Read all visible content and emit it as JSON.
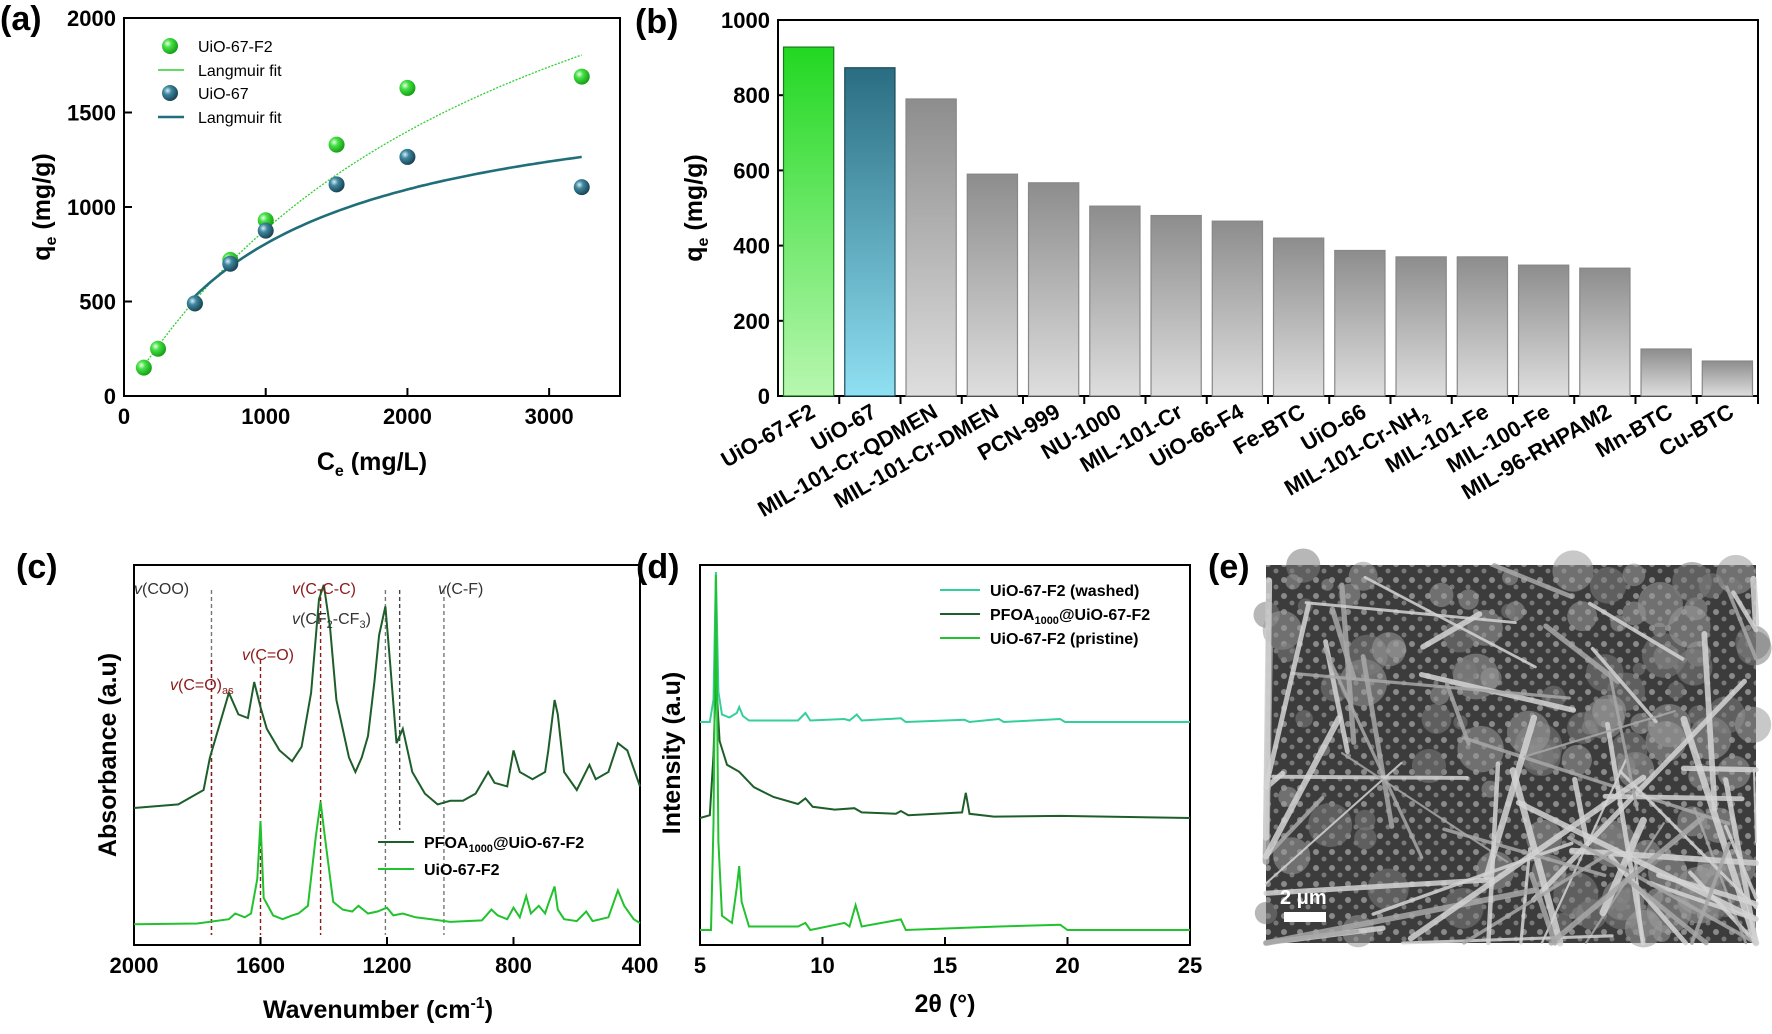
{
  "panels": {
    "a": "(a)",
    "b": "(b)",
    "c": "(c)",
    "d": "(d)",
    "e": "(e)"
  },
  "colors": {
    "uio67f2": "#2fd12f",
    "uio67f2_dark": "#1a8a1a",
    "uio67": "#2a6b80",
    "uio67_line": "#1f6e7a",
    "gray": "#9a9a9a",
    "pfoa_line": "#1d5e2a",
    "pristine_line": "#22c22f",
    "washed_line": "#35cf9a",
    "ann_red": "#8b1a1a"
  },
  "chart_data": [
    {
      "id": "a",
      "type": "scatter",
      "xlabel_main": "C",
      "xlabel_sub": "e",
      "xlabel_unit": " (mg/L)",
      "ylabel_main": "q",
      "ylabel_sub": "e",
      "ylabel_unit": " (mg/g)",
      "xlim": [
        0,
        3500
      ],
      "ylim": [
        0,
        2000
      ],
      "xticks": [
        0,
        1000,
        2000,
        3000
      ],
      "yticks": [
        0,
        500,
        1000,
        1500,
        2000
      ],
      "legend_position": "top-left",
      "series": [
        {
          "name": "UiO-67-F2",
          "kind": "points",
          "x": [
            140,
            240,
            500,
            750,
            1000,
            1500,
            2000,
            3230
          ],
          "y": [
            150,
            250,
            490,
            720,
            930,
            1330,
            1630,
            1690
          ]
        },
        {
          "name": "Langmuir fit",
          "kind": "fit",
          "qmax": 3400,
          "K": 0.00035,
          "xrange": [
            140,
            3230
          ]
        },
        {
          "name": "UiO-67",
          "kind": "points",
          "x": [
            500,
            750,
            1000,
            1500,
            2000,
            3230
          ],
          "y": [
            490,
            700,
            875,
            1120,
            1265,
            1105
          ]
        },
        {
          "name": "Langmuir fit",
          "kind": "fit",
          "qmax": 1700,
          "K": 0.0009,
          "xrange": [
            500,
            3230
          ]
        }
      ]
    },
    {
      "id": "b",
      "type": "bar",
      "ylabel_main": "q",
      "ylabel_sub": "e",
      "ylabel_unit": " (mg/g)",
      "ylim": [
        0,
        1000
      ],
      "yticks": [
        0,
        200,
        400,
        600,
        800,
        1000
      ],
      "categories": [
        "UiO-67-F2",
        "UiO-67",
        "MIL-101-Cr-QDMEN",
        "MIL-101-Cr-DMEN",
        "PCN-999",
        "NU-1000",
        "MIL-101-Cr",
        "UiO-66-F4",
        "Fe-BTC",
        "UiO-66",
        "MIL-101-Cr-NH",
        "MIL-101-Fe",
        "MIL-100-Fe",
        "MIL-96-RHPAM2",
        "Mn-BTC",
        "Cu-BTC"
      ],
      "category_subscript": {
        "MIL-101-Cr-NH": "2"
      },
      "values": [
        928,
        873,
        790,
        590,
        567,
        505,
        480,
        465,
        420,
        387,
        370,
        370,
        348,
        340,
        125,
        93
      ]
    },
    {
      "id": "c",
      "type": "line",
      "xlabel": "Wavenumber (cm",
      "xlabel_sup": "-1",
      "xlabel_close": ")",
      "ylabel": "Absorbance (a.u)",
      "xlim": [
        2000,
        400
      ],
      "xticks": [
        2000,
        1600,
        1200,
        800,
        400
      ],
      "reversed_x": true,
      "legend_position": "bottom-right",
      "series": [
        {
          "name": "PFOA",
          "name_sub": "1000",
          "name_rest": "@UiO-67-F2",
          "points": [
            [
              2000,
              0.2
            ],
            [
              1860,
              0.21
            ],
            [
              1780,
              0.25
            ],
            [
              1760,
              0.34
            ],
            [
              1700,
              0.52
            ],
            [
              1670,
              0.46
            ],
            [
              1640,
              0.45
            ],
            [
              1620,
              0.55
            ],
            [
              1600,
              0.48
            ],
            [
              1580,
              0.42
            ],
            [
              1540,
              0.36
            ],
            [
              1500,
              0.33
            ],
            [
              1470,
              0.37
            ],
            [
              1440,
              0.52
            ],
            [
              1415,
              0.78
            ],
            [
              1400,
              0.82
            ],
            [
              1380,
              0.7
            ],
            [
              1360,
              0.5
            ],
            [
              1320,
              0.34
            ],
            [
              1300,
              0.3
            ],
            [
              1280,
              0.34
            ],
            [
              1260,
              0.4
            ],
            [
              1240,
              0.55
            ],
            [
              1225,
              0.68
            ],
            [
              1205,
              0.76
            ],
            [
              1190,
              0.6
            ],
            [
              1170,
              0.38
            ],
            [
              1150,
              0.42
            ],
            [
              1120,
              0.3
            ],
            [
              1080,
              0.24
            ],
            [
              1040,
              0.21
            ],
            [
              1000,
              0.22
            ],
            [
              960,
              0.22
            ],
            [
              920,
              0.24
            ],
            [
              880,
              0.3
            ],
            [
              860,
              0.27
            ],
            [
              820,
              0.26
            ],
            [
              800,
              0.36
            ],
            [
              780,
              0.3
            ],
            [
              740,
              0.28
            ],
            [
              700,
              0.3
            ],
            [
              690,
              0.36
            ],
            [
              670,
              0.5
            ],
            [
              660,
              0.46
            ],
            [
              640,
              0.3
            ],
            [
              600,
              0.25
            ],
            [
              560,
              0.32
            ],
            [
              540,
              0.28
            ],
            [
              500,
              0.3
            ],
            [
              470,
              0.38
            ],
            [
              440,
              0.36
            ],
            [
              400,
              0.26
            ]
          ]
        },
        {
          "name": "UiO-67-F2",
          "points": [
            [
              2000,
              0.002
            ],
            [
              1800,
              0.004
            ],
            [
              1700,
              0.015
            ],
            [
              1680,
              0.03
            ],
            [
              1650,
              0.02
            ],
            [
              1630,
              0.03
            ],
            [
              1610,
              0.12
            ],
            [
              1600,
              0.27
            ],
            [
              1590,
              0.07
            ],
            [
              1560,
              0.025
            ],
            [
              1530,
              0.015
            ],
            [
              1500,
              0.025
            ],
            [
              1480,
              0.03
            ],
            [
              1450,
              0.05
            ],
            [
              1425,
              0.23
            ],
            [
              1410,
              0.32
            ],
            [
              1395,
              0.22
            ],
            [
              1370,
              0.06
            ],
            [
              1340,
              0.04
            ],
            [
              1310,
              0.035
            ],
            [
              1290,
              0.05
            ],
            [
              1260,
              0.03
            ],
            [
              1230,
              0.035
            ],
            [
              1200,
              0.045
            ],
            [
              1180,
              0.025
            ],
            [
              1150,
              0.03
            ],
            [
              1110,
              0.02
            ],
            [
              1060,
              0.015
            ],
            [
              1000,
              0.008
            ],
            [
              900,
              0.012
            ],
            [
              870,
              0.04
            ],
            [
              850,
              0.025
            ],
            [
              820,
              0.015
            ],
            [
              800,
              0.045
            ],
            [
              780,
              0.02
            ],
            [
              760,
              0.075
            ],
            [
              745,
              0.03
            ],
            [
              720,
              0.05
            ],
            [
              700,
              0.03
            ],
            [
              690,
              0.055
            ],
            [
              670,
              0.1
            ],
            [
              660,
              0.04
            ],
            [
              640,
              0.015
            ],
            [
              600,
              0.01
            ],
            [
              570,
              0.035
            ],
            [
              550,
              0.01
            ],
            [
              500,
              0.02
            ],
            [
              470,
              0.09
            ],
            [
              450,
              0.05
            ],
            [
              420,
              0.015
            ],
            [
              400,
              0.005
            ]
          ]
        }
      ],
      "annotations": [
        {
          "label": "v",
          "text": "(COO)",
          "x": 1755,
          "color": "gray",
          "row": 0
        },
        {
          "label": "v",
          "text": "(C=O)",
          "x": 1600,
          "color": "red",
          "row": 2
        },
        {
          "label": "v",
          "text": "(C=O)",
          "sub": "as",
          "x": 1755,
          "color": "red",
          "row": 3
        },
        {
          "label": "v",
          "text": "(C-C-C)",
          "x": 1410,
          "color": "red",
          "row": 0
        },
        {
          "label": "v",
          "text": "(CF",
          "sub": "2",
          "text2": "-CF",
          "sub2": "3",
          "text3": ")",
          "x": 1205,
          "color": "gray",
          "row": 1
        },
        {
          "label": "v",
          "text": "(C-F)",
          "x": 1020,
          "color": "gray",
          "row": 0
        }
      ]
    },
    {
      "id": "d",
      "type": "line",
      "xlabel": "2θ (°)",
      "ylabel": "Intensity (a.u)",
      "xlim": [
        5,
        25
      ],
      "xticks": [
        5,
        10,
        15,
        20,
        25
      ],
      "legend_position": "top-right",
      "series": [
        {
          "name": "UiO-67-F2 (washed)",
          "points": [
            [
              5,
              0.0
            ],
            [
              5.4,
              0.0
            ],
            [
              5.55,
              0.15
            ],
            [
              5.65,
              1.0
            ],
            [
              5.75,
              0.2
            ],
            [
              5.9,
              0.05
            ],
            [
              6.2,
              0.03
            ],
            [
              6.5,
              0.06
            ],
            [
              6.6,
              0.1
            ],
            [
              6.75,
              0.04
            ],
            [
              7,
              0.01
            ],
            [
              9,
              0.01
            ],
            [
              9.3,
              0.06
            ],
            [
              9.5,
              0.01
            ],
            [
              10.9,
              0.02
            ],
            [
              11.1,
              0.01
            ],
            [
              11.4,
              0.05
            ],
            [
              11.6,
              0.01
            ],
            [
              13.2,
              0.025
            ],
            [
              13.4,
              0.0
            ],
            [
              15.8,
              0.015
            ],
            [
              16,
              0.0
            ],
            [
              17.2,
              0.02
            ],
            [
              17.4,
              0.0
            ],
            [
              19.7,
              0.02
            ],
            [
              19.9,
              0.0
            ],
            [
              25,
              0.0
            ]
          ]
        },
        {
          "name": "PFOA",
          "name_sub": "1000",
          "name_rest": "@UiO-67-F2",
          "points": [
            [
              5,
              0.0
            ],
            [
              5.4,
              0.02
            ],
            [
              5.55,
              0.45
            ],
            [
              5.65,
              1.0
            ],
            [
              5.8,
              0.55
            ],
            [
              6.1,
              0.38
            ],
            [
              6.6,
              0.33
            ],
            [
              7.2,
              0.22
            ],
            [
              8,
              0.15
            ],
            [
              9,
              0.1
            ],
            [
              9.3,
              0.14
            ],
            [
              9.6,
              0.08
            ],
            [
              10.5,
              0.06
            ],
            [
              11.3,
              0.07
            ],
            [
              11.6,
              0.04
            ],
            [
              13,
              0.03
            ],
            [
              13.2,
              0.05
            ],
            [
              13.5,
              0.02
            ],
            [
              15.7,
              0.04
            ],
            [
              15.85,
              0.18
            ],
            [
              16,
              0.03
            ],
            [
              17,
              0.01
            ],
            [
              19.7,
              0.015
            ],
            [
              25,
              0.0
            ]
          ]
        },
        {
          "name": "UiO-67-F2 (pristine)",
          "points": [
            [
              5,
              0.0
            ],
            [
              5.45,
              0.0
            ],
            [
              5.55,
              0.3
            ],
            [
              5.65,
              1.0
            ],
            [
              5.75,
              0.25
            ],
            [
              5.9,
              0.04
            ],
            [
              6.3,
              0.02
            ],
            [
              6.5,
              0.12
            ],
            [
              6.6,
              0.18
            ],
            [
              6.7,
              0.08
            ],
            [
              7,
              0.01
            ],
            [
              9,
              0.01
            ],
            [
              9.3,
              0.02
            ],
            [
              9.5,
              0.0
            ],
            [
              10.9,
              0.02
            ],
            [
              11.1,
              0.01
            ],
            [
              11.35,
              0.07
            ],
            [
              11.6,
              0.01
            ],
            [
              13.2,
              0.03
            ],
            [
              13.4,
              0.0
            ],
            [
              17.2,
              0.01
            ],
            [
              19.7,
              0.015
            ],
            [
              20,
              0.0
            ],
            [
              25,
              0.0
            ]
          ]
        }
      ]
    }
  ],
  "panel_e": {
    "scale_bar_label": "2 μm"
  }
}
